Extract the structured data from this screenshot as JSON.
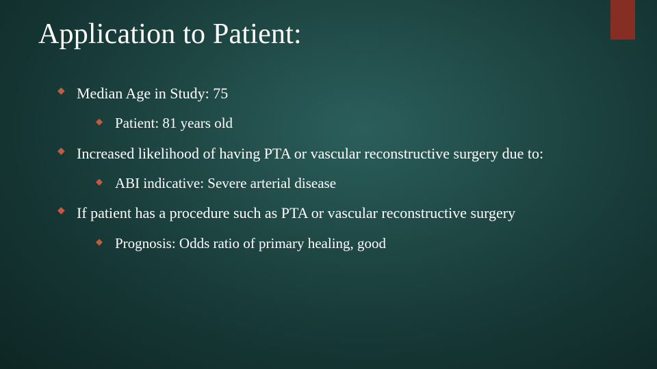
{
  "slide": {
    "title": "Application to Patient:",
    "background_gradient": {
      "center_color": "#2b5f5c",
      "mid_color": "#1f4845",
      "outer_color": "#153634",
      "edge_color": "#0e2624"
    },
    "accent_bar_color": "#862e23",
    "bullet_color": "#c55a42",
    "text_color": "#ffffff",
    "title_fontsize": 42,
    "body_fontsize": 22,
    "sub_fontsize": 21,
    "font_family": "Times New Roman",
    "bullets": [
      {
        "level": 1,
        "text": "Median Age in Study: 75",
        "children": [
          {
            "level": 2,
            "text": "Patient: 81 years old"
          }
        ]
      },
      {
        "level": 1,
        "text": "Increased likelihood of having PTA or vascular reconstructive surgery due to:",
        "children": [
          {
            "level": 2,
            "text": "ABI indicative: Severe arterial disease"
          }
        ]
      },
      {
        "level": 1,
        "text": "If patient has a procedure such as PTA or vascular reconstructive surgery",
        "children": [
          {
            "level": 2,
            "text": "Prognosis: Odds ratio of primary healing, good"
          }
        ]
      }
    ]
  }
}
